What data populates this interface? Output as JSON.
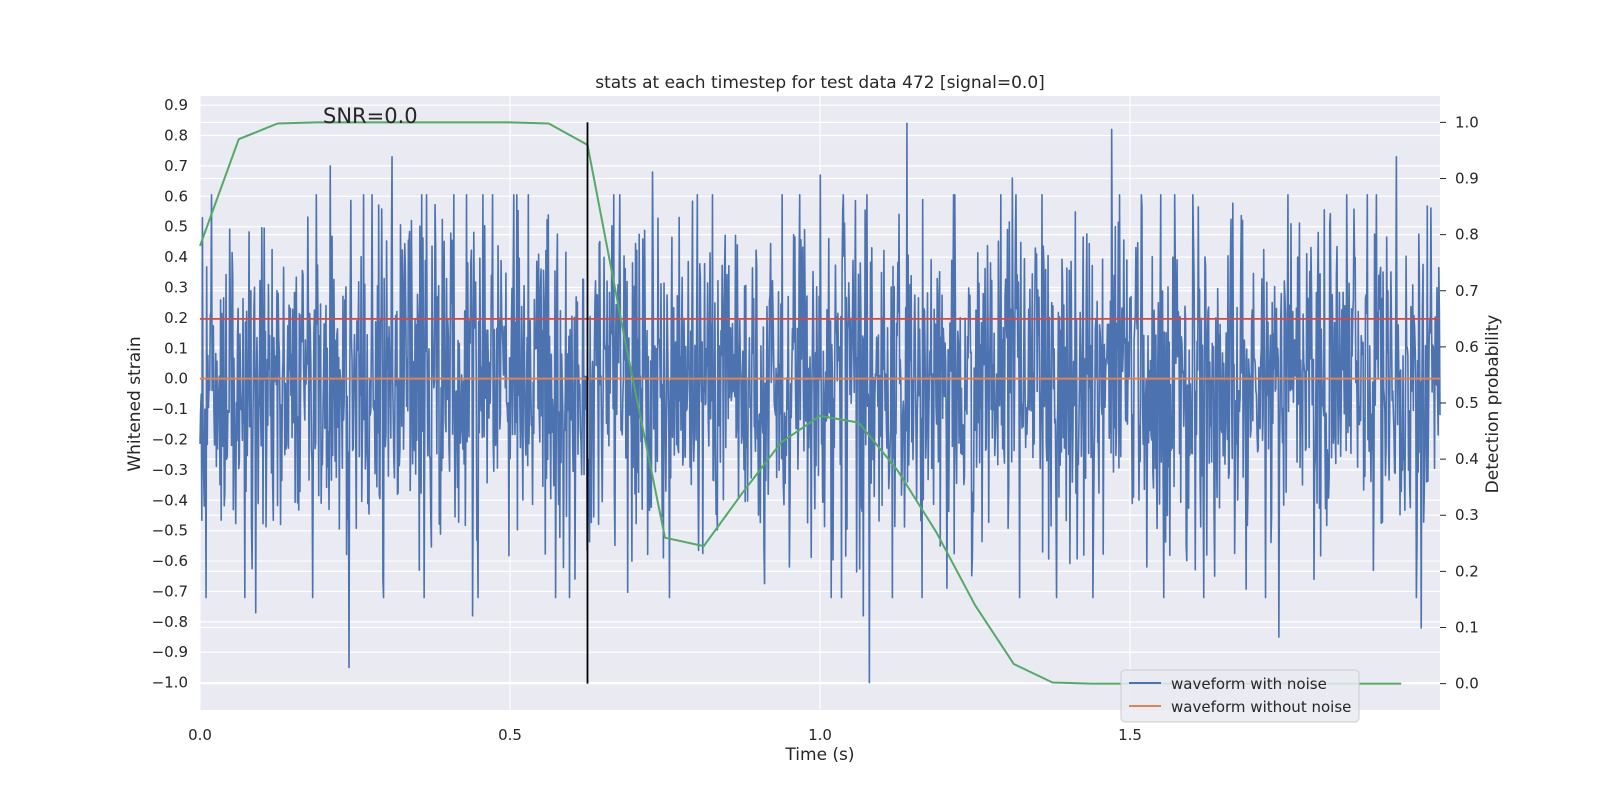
{
  "chart_data": {
    "type": "line",
    "title": "stats at each timestep for test data 472 [signal=0.0]",
    "xlabel": "Time (s)",
    "ylabel": "Whitened strain",
    "ylabel_right": "Detection probability",
    "xlim": [
      0.0,
      2.0
    ],
    "ylim": [
      -1.09,
      0.93
    ],
    "ylim_right": [
      -0.047,
      1.047
    ],
    "x_ticks": [
      0.0,
      0.5,
      1.0,
      1.5
    ],
    "x_tick_labels": [
      "0.0",
      "0.5",
      "1.0",
      "1.5"
    ],
    "y_ticks": [
      0.9,
      0.8,
      0.7,
      0.6,
      0.5,
      0.4,
      0.3,
      0.2,
      0.1,
      0.0,
      -0.1,
      -0.2,
      -0.3,
      -0.4,
      -0.5,
      -0.6,
      -0.7,
      -0.8,
      -0.9,
      -1.0
    ],
    "y_tick_labels": [
      "0.9",
      "0.8",
      "0.7",
      "0.6",
      "0.5",
      "0.4",
      "0.3",
      "0.2",
      "0.1",
      "0.0",
      "−0.1",
      "−0.2",
      "−0.3",
      "−0.4",
      "−0.5",
      "−0.6",
      "−0.7",
      "−0.8",
      "−0.9",
      "−1.0"
    ],
    "y_right_ticks": [
      1.0,
      0.9,
      0.8,
      0.7,
      0.6,
      0.5,
      0.4,
      0.3,
      0.2,
      0.1,
      0.0
    ],
    "y_right_tick_labels": [
      "1.0",
      "0.9",
      "0.8",
      "0.7",
      "0.6",
      "0.5",
      "0.4",
      "0.3",
      "0.2",
      "0.1",
      "0.0"
    ],
    "annotation": "SNR=0.0",
    "threshold": 0.65,
    "marker_time": 0.625,
    "grid": true,
    "legend_position": "lower-right",
    "series": [
      {
        "name": "waveform with noise",
        "color": "#4c72b0",
        "axis": "left",
        "noise": {
          "points": 2048,
          "t_start": 0.0,
          "t_end": 2.0,
          "std": 0.28,
          "min": -1.0,
          "max": 0.84,
          "peaks": [
            {
              "t": 0.21,
              "v": 0.7
            },
            {
              "t": 0.31,
              "v": 0.73
            },
            {
              "t": 0.24,
              "v": -0.95
            },
            {
              "t": 0.09,
              "v": -0.77
            },
            {
              "t": 0.44,
              "v": -0.78
            },
            {
              "t": 0.73,
              "v": 0.68
            },
            {
              "t": 1.14,
              "v": 0.84
            },
            {
              "t": 1.47,
              "v": 0.82
            },
            {
              "t": 1.08,
              "v": -1.0
            },
            {
              "t": 1.07,
              "v": -0.78
            },
            {
              "t": 1.31,
              "v": 0.66
            },
            {
              "t": 1.74,
              "v": -0.85
            },
            {
              "t": 1.93,
              "v": 0.73
            },
            {
              "t": 1.97,
              "v": -0.82
            },
            {
              "t": 1.0,
              "v": 0.67
            }
          ]
        }
      },
      {
        "name": "waveform without noise",
        "color": "#dd8452",
        "axis": "left",
        "x": [
          0.0,
          2.0
        ],
        "values": [
          0.0,
          0.0
        ]
      },
      {
        "name": "detection probability",
        "color": "#55a868",
        "axis": "right",
        "x": [
          0.0,
          0.0625,
          0.125,
          0.1875,
          0.25,
          0.3125,
          0.375,
          0.4375,
          0.5,
          0.5625,
          0.625,
          0.6875,
          0.75,
          0.8125,
          0.875,
          0.9375,
          1.0,
          1.0625,
          1.125,
          1.1875,
          1.25,
          1.3125,
          1.375,
          1.4375,
          1.5,
          1.5625,
          1.625,
          1.6875,
          1.75,
          1.8125,
          1.875,
          1.9375
        ],
        "values": [
          0.78,
          0.97,
          0.998,
          1.0,
          1.0,
          1.0,
          1.0,
          1.0,
          1.0,
          0.998,
          0.96,
          0.6,
          0.26,
          0.245,
          0.34,
          0.43,
          0.477,
          0.465,
          0.38,
          0.27,
          0.14,
          0.035,
          0.002,
          0.0,
          0.0,
          0.0,
          0.0,
          0.0,
          0.0,
          0.0,
          0.0,
          0.0
        ]
      }
    ]
  }
}
